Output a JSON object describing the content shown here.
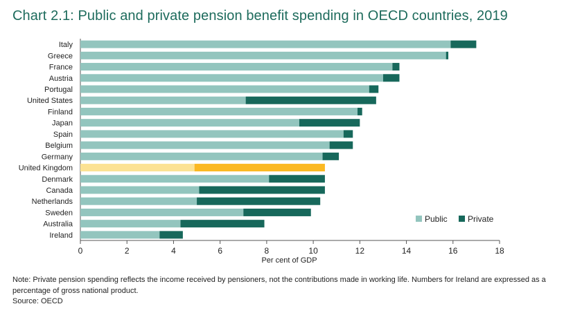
{
  "title": "Chart 2.1: Public and private pension benefit spending in OECD countries, 2019",
  "note": "Note: Private pension spending reflects the income received by pensioners, not the contributions made in working life. Numbers for Ireland are expressed as a percentage of gross national product.",
  "source": "Source: OECD",
  "chart_data": {
    "type": "bar",
    "orientation": "horizontal",
    "stacked": true,
    "title": "Chart 2.1: Public and private pension benefit spending in OECD countries, 2019",
    "xlabel": "Per cent of GDP",
    "ylabel": "",
    "xlim": [
      0,
      18
    ],
    "xticks": [
      0,
      2,
      4,
      6,
      8,
      10,
      12,
      14,
      16,
      18
    ],
    "grid": false,
    "legend_position": "bottom-right",
    "categories": [
      "Italy",
      "Greece",
      "France",
      "Austria",
      "Portugal",
      "United States",
      "Finland",
      "Japan",
      "Spain",
      "Belgium",
      "Germany",
      "United Kingdom",
      "Denmark",
      "Canada",
      "Netherlands",
      "Sweden",
      "Australia",
      "Ireland"
    ],
    "series": [
      {
        "name": "Public",
        "color": "#93c5be",
        "values": [
          15.9,
          15.7,
          13.4,
          13.0,
          12.4,
          7.1,
          11.9,
          9.4,
          11.3,
          10.7,
          10.4,
          4.9,
          8.1,
          5.1,
          5.0,
          7.0,
          4.3,
          3.4
        ]
      },
      {
        "name": "Private",
        "color": "#17685b",
        "values": [
          1.1,
          0.1,
          0.3,
          0.7,
          0.4,
          5.6,
          0.2,
          2.6,
          0.4,
          1.0,
          0.7,
          5.6,
          2.4,
          5.4,
          5.3,
          2.9,
          3.6,
          1.0
        ]
      }
    ],
    "highlight": {
      "category": "United Kingdom",
      "colors": {
        "Public": "#fce293",
        "Private": "#fbb923"
      }
    }
  }
}
